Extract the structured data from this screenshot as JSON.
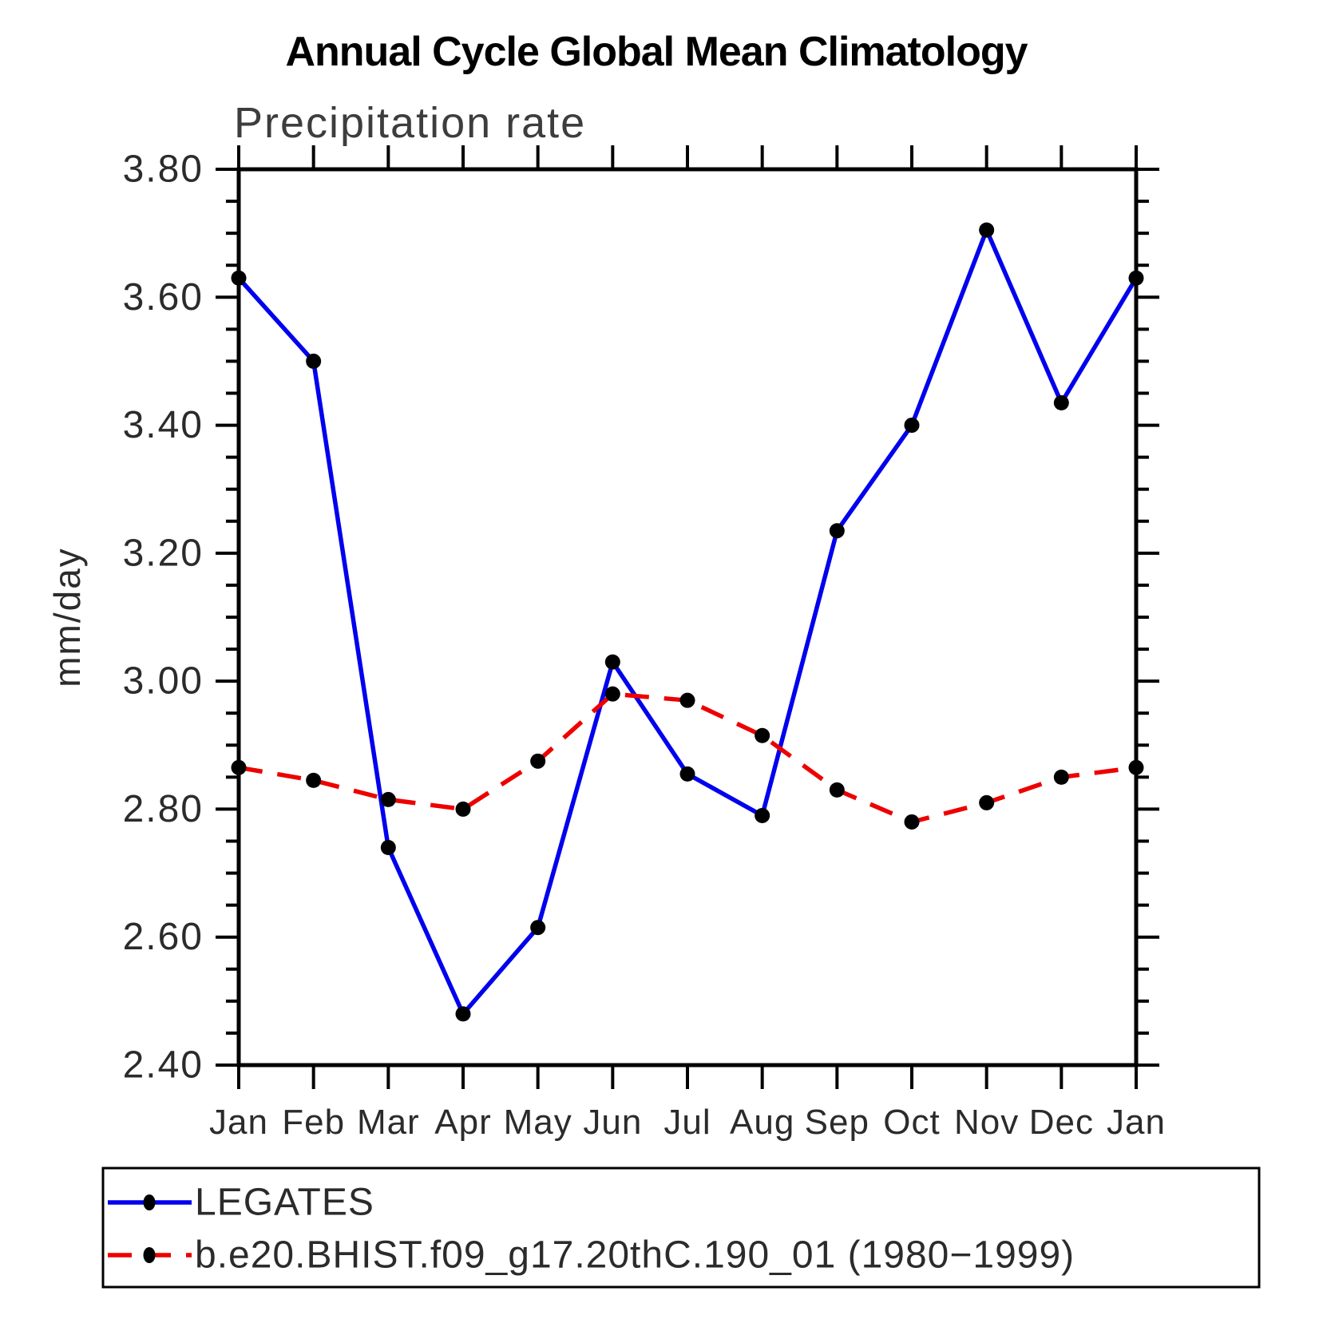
{
  "header": {
    "title": "Annual Cycle Global Mean Climatology",
    "subtitle": "Precipitation rate"
  },
  "axes": {
    "y_label": "mm/day"
  },
  "colors": {
    "series1": "#0000ee",
    "series2": "#ee0000",
    "marker": "#000000",
    "axis": "#000000"
  },
  "chart_data": {
    "type": "line",
    "title": "Annual Cycle Global Mean Climatology",
    "subtitle": "Precipitation rate",
    "xlabel": "",
    "ylabel": "mm/day",
    "categories": [
      "Jan",
      "Feb",
      "Mar",
      "Apr",
      "May",
      "Jun",
      "Jul",
      "Aug",
      "Sep",
      "Oct",
      "Nov",
      "Dec",
      "Jan"
    ],
    "ylim": [
      2.4,
      3.8
    ],
    "y_major_ticks": [
      2.4,
      2.6,
      2.8,
      3.0,
      3.2,
      3.4,
      3.6,
      3.8
    ],
    "y_tick_labels": [
      "2.40",
      "2.60",
      "2.80",
      "3.00",
      "3.20",
      "3.40",
      "3.60",
      "3.80"
    ],
    "y_minor_step": 0.05,
    "grid": false,
    "legend_position": "bottom",
    "series": [
      {
        "name": "LEGATES",
        "color": "#0000ee",
        "style": "solid",
        "marker": "filled-circle",
        "values": [
          3.63,
          3.5,
          2.74,
          2.48,
          2.615,
          3.03,
          2.855,
          2.79,
          3.235,
          3.4,
          3.705,
          3.435,
          3.63
        ]
      },
      {
        "name": "b.e20.BHIST.f09_g17.20thC.190_01 (1980−1999)",
        "color": "#ee0000",
        "style": "dashed",
        "marker": "filled-circle",
        "values": [
          2.865,
          2.845,
          2.815,
          2.8,
          2.875,
          2.98,
          2.97,
          2.915,
          2.83,
          2.78,
          2.81,
          2.85,
          2.865
        ]
      }
    ]
  }
}
